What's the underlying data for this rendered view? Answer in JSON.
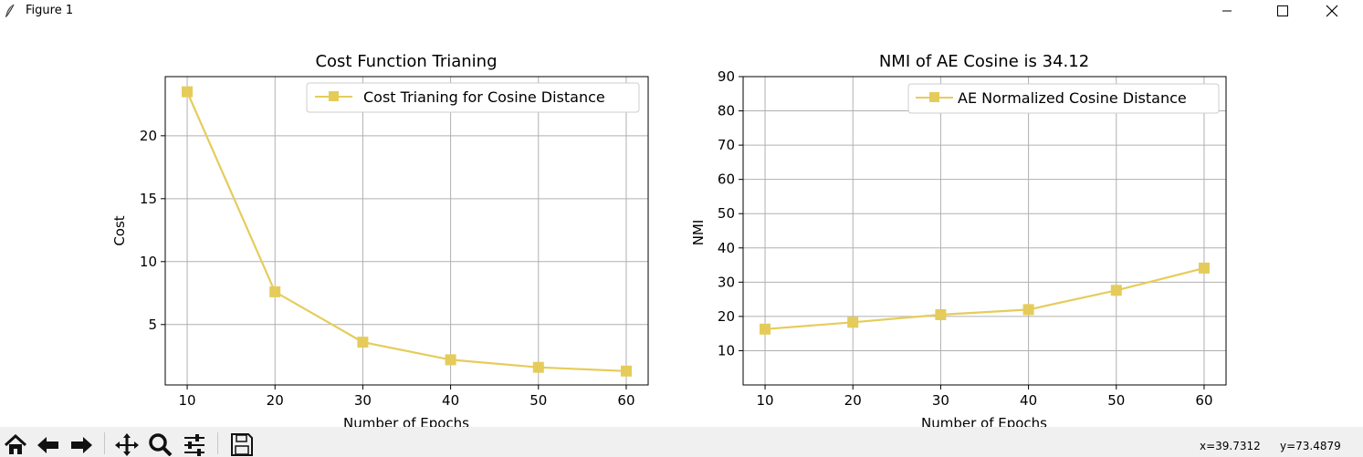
{
  "window": {
    "title": "Figure 1"
  },
  "charts": [
    {
      "title": "Cost Function Trianing",
      "xlabel": "Number of Epochs",
      "ylabel": "Cost",
      "legend": "Cost Trianing for Cosine Distance",
      "xticks": [
        "10",
        "20",
        "30",
        "40",
        "50",
        "60"
      ],
      "yticks": [
        "5",
        "10",
        "15",
        "20"
      ]
    },
    {
      "title": "NMI of AE Cosine is 34.12",
      "xlabel": "Number of Epochs",
      "ylabel": "NMI",
      "legend": "AE Normalized Cosine Distance",
      "xticks": [
        "10",
        "20",
        "30",
        "40",
        "50",
        "60"
      ],
      "yticks": [
        "10",
        "20",
        "30",
        "40",
        "50",
        "60",
        "70",
        "80",
        "90"
      ]
    }
  ],
  "chart_data": [
    {
      "type": "line",
      "title": "Cost Function Trianing",
      "xlabel": "Number of Epochs",
      "ylabel": "Cost",
      "x": [
        10,
        20,
        30,
        40,
        50,
        60
      ],
      "series": [
        {
          "name": "Cost Trianing for Cosine Distance",
          "values": [
            23.5,
            7.6,
            3.6,
            2.2,
            1.6,
            1.3
          ],
          "color": "#e5cc5a",
          "marker": "square"
        }
      ],
      "xlim": [
        7.5,
        62.5
      ],
      "ylim": [
        0.2,
        24.7
      ],
      "grid": true,
      "legend_position": "upper right"
    },
    {
      "type": "line",
      "title": "NMI of AE Cosine is 34.12",
      "xlabel": "Number of Epochs",
      "ylabel": "NMI",
      "x": [
        10,
        20,
        30,
        40,
        50,
        60
      ],
      "series": [
        {
          "name": "AE Normalized Cosine Distance",
          "values": [
            16.3,
            18.3,
            20.5,
            22.0,
            27.6,
            34.12
          ],
          "color": "#e5cc5a",
          "marker": "square"
        }
      ],
      "xlim": [
        7.5,
        62.5
      ],
      "ylim": [
        0,
        90
      ],
      "grid": true,
      "legend_position": "upper right"
    }
  ],
  "toolbar": {
    "icons": [
      "home-icon",
      "back-arrow-icon",
      "forward-arrow-icon",
      "pan-icon",
      "zoom-icon",
      "configure-subplots-icon",
      "save-icon"
    ]
  },
  "status": {
    "x": "x=39.7312",
    "y": "y=73.4879"
  }
}
